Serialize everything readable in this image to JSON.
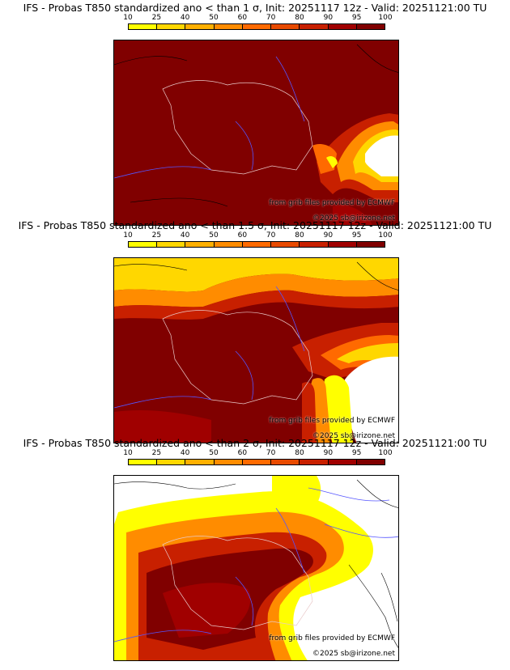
{
  "colorbar": {
    "labels": [
      "10",
      "25",
      "40",
      "50",
      "60",
      "70",
      "80",
      "90",
      "95",
      "100"
    ],
    "colors": [
      "#ffff00",
      "#ffd700",
      "#ffb000",
      "#ff8c00",
      "#ff6a00",
      "#e84a00",
      "#c82000",
      "#a00000",
      "#800000"
    ],
    "land_color": "#ffffff"
  },
  "credits": {
    "source": "from grib files provided by ECMWF",
    "copyright": "©2025 sb@irizone.net"
  },
  "panels": [
    {
      "title": "IFS - Probas T850  standardized ano < than 1 σ, Init: 20251117 12z - Valid: 20251121:00 TU",
      "threshold_sigma": 1,
      "coverage": "high"
    },
    {
      "title": "IFS - Probas T850  standardized ano < than 1.5 σ, Init: 20251117 12z - Valid: 20251121:00 TU",
      "threshold_sigma": 1.5,
      "coverage": "medium"
    },
    {
      "title": "IFS - Probas T850  standardized ano < than 2 σ, Init: 20251117 12z - Valid: 20251121:00 TU",
      "threshold_sigma": 2,
      "coverage": "low"
    }
  ]
}
